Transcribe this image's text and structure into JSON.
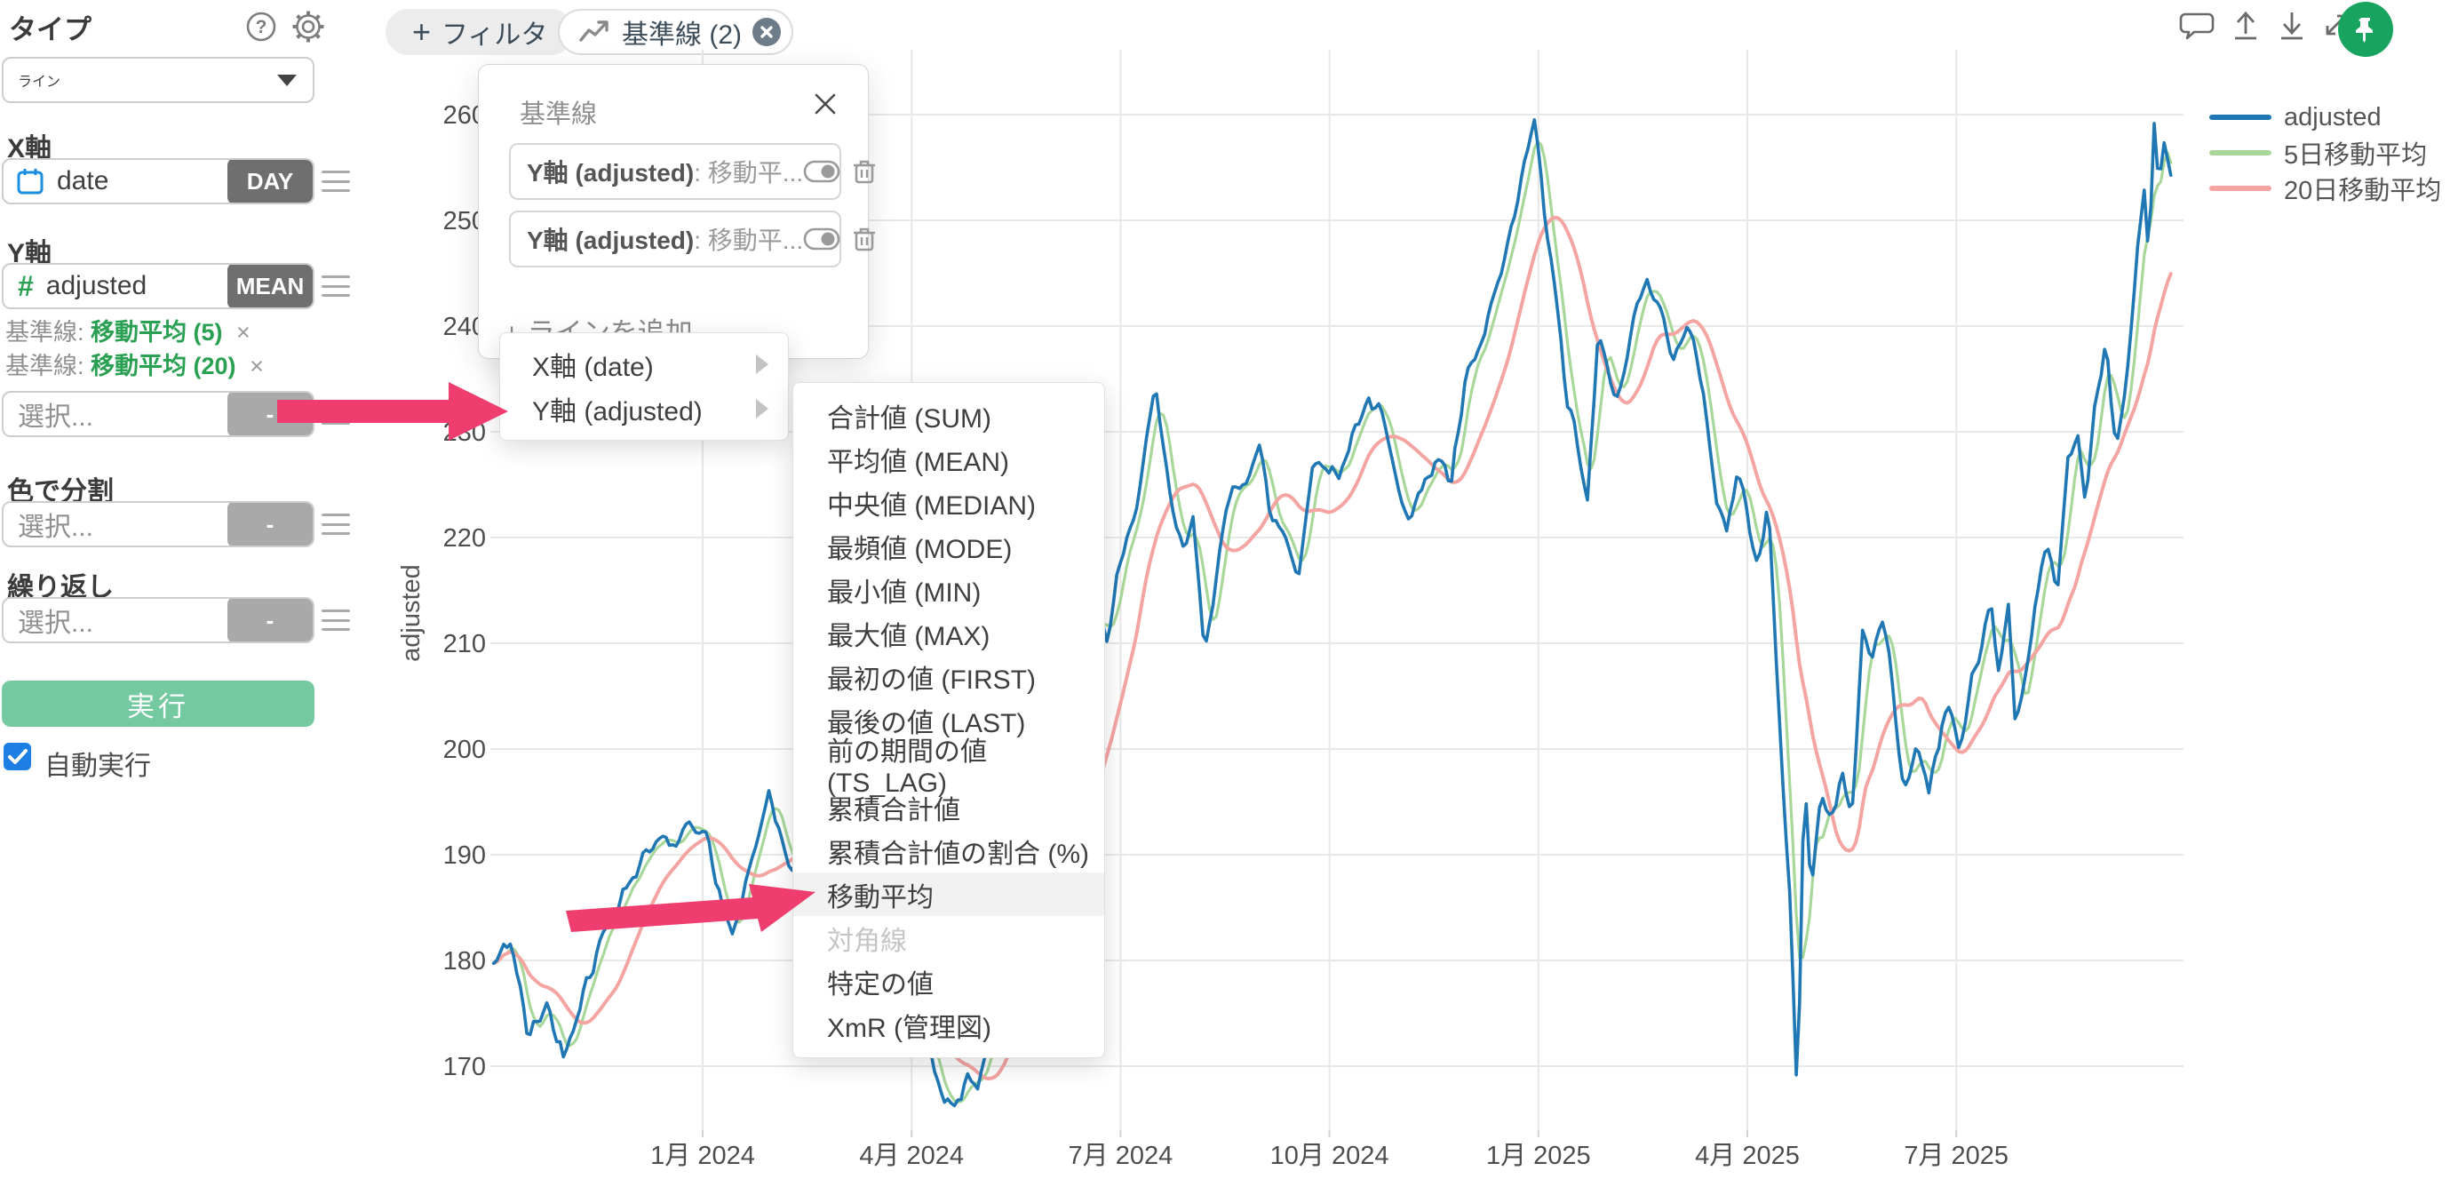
{
  "sidebar": {
    "type_label": "タイプ",
    "type_value": "ライン",
    "x_axis_label": "X軸",
    "x_field": "date",
    "x_agg": "DAY",
    "y_axis_label": "Y軸",
    "y_field": "adjusted",
    "y_agg": "MEAN",
    "ref_lines": [
      {
        "prefix": "基準線:",
        "label": "移動平均 (5)",
        "remove": "×"
      },
      {
        "prefix": "基準線:",
        "label": "移動平均 (20)",
        "remove": "×"
      }
    ],
    "y2_placeholder": "選択...",
    "y2_agg": "-",
    "color_label": "色で分割",
    "color_placeholder": "選択...",
    "color_agg": "-",
    "repeat_label": "繰り返し",
    "repeat_placeholder": "選択...",
    "repeat_agg": "-",
    "run_button": "実行",
    "auto_run_label": "自動実行",
    "auto_run_checked": true
  },
  "toolbar": {
    "filter_plus": "+",
    "filter_button": "フィルタ",
    "baseline_chip": "基準線 (2)"
  },
  "popup": {
    "title": "基準線",
    "rows": [
      {
        "bold": "Y軸 (adjusted)",
        "rest": " : 移動平..."
      },
      {
        "bold": "Y軸 (adjusted)",
        "rest": " : 移動平..."
      }
    ],
    "add_line": "+ ラインを追加"
  },
  "axis_menu": {
    "items": [
      {
        "label": "X軸 (date)"
      },
      {
        "label": "Y軸 (adjusted)"
      }
    ]
  },
  "agg_menu": {
    "items": [
      {
        "label": "合計値 (SUM)",
        "state": "normal"
      },
      {
        "label": "平均値 (MEAN)",
        "state": "normal"
      },
      {
        "label": "中央値 (MEDIAN)",
        "state": "normal"
      },
      {
        "label": "最頻値 (MODE)",
        "state": "normal"
      },
      {
        "label": "最小値 (MIN)",
        "state": "normal"
      },
      {
        "label": "最大値 (MAX)",
        "state": "normal"
      },
      {
        "label": "最初の値 (FIRST)",
        "state": "normal"
      },
      {
        "label": "最後の値 (LAST)",
        "state": "normal"
      },
      {
        "label": "前の期間の値 (TS_LAG)",
        "state": "normal"
      },
      {
        "label": "累積合計値",
        "state": "normal"
      },
      {
        "label": "累積合計値の割合 (%)",
        "state": "normal"
      },
      {
        "label": "移動平均",
        "state": "highlight"
      },
      {
        "label": "対角線",
        "state": "disabled"
      },
      {
        "label": "特定の値",
        "state": "normal"
      },
      {
        "label": "XmR (管理図)",
        "state": "normal"
      }
    ]
  },
  "legend": [
    {
      "label": "adjusted",
      "color": "#1f77b4"
    },
    {
      "label": "5日移動平均",
      "color": "#a8d79a"
    },
    {
      "label": "20日移動平均",
      "color": "#f4a5a2"
    }
  ],
  "colors": {
    "accent_green": "#74c9a1",
    "link_green": "#2aa053",
    "arrow_pink": "#ee3d6e",
    "checkbox_blue": "#1d7fe3",
    "pin_green": "#18a45f",
    "grid": "#e8e8e8"
  },
  "chart_data": {
    "type": "line",
    "xlabel": "date",
    "ylabel": "adjusted",
    "x_ticks": [
      "1月 2024",
      "4月 2024",
      "7月 2024",
      "10月 2024",
      "1月 2025",
      "4月 2025",
      "7月 2025"
    ],
    "y_ticks": [
      170,
      180,
      190,
      200,
      210,
      220,
      230,
      240,
      250,
      260
    ],
    "ylim": [
      163,
      266
    ],
    "x_range_months": [
      "2023-10",
      "2025-10"
    ],
    "grid": true,
    "legend_position": "top-right",
    "series": [
      {
        "name": "adjusted",
        "color": "#1f77b4",
        "anchors": [
          [
            0,
            179.5
          ],
          [
            0.25,
            182
          ],
          [
            0.5,
            172.5
          ],
          [
            0.75,
            176
          ],
          [
            1,
            171
          ],
          [
            1.25,
            176.5
          ],
          [
            1.55,
            182
          ],
          [
            1.85,
            186.5
          ],
          [
            2.1,
            189
          ],
          [
            2.4,
            192.5
          ],
          [
            2.55,
            190
          ],
          [
            2.85,
            193.5
          ],
          [
            3.05,
            192
          ],
          [
            3.25,
            185.5
          ],
          [
            3.45,
            182.5
          ],
          [
            3.7,
            189
          ],
          [
            3.95,
            196
          ],
          [
            4.1,
            192
          ],
          [
            4.25,
            187.5
          ],
          [
            4.4,
            190.5
          ],
          [
            4.6,
            182.5
          ],
          [
            4.8,
            184.5
          ],
          [
            4.95,
            179.5
          ],
          [
            5.15,
            181.5
          ],
          [
            5.35,
            172.8
          ],
          [
            5.55,
            176.5
          ],
          [
            5.85,
            171
          ],
          [
            6.1,
            175.5
          ],
          [
            6.35,
            169.5
          ],
          [
            6.6,
            165.3
          ],
          [
            6.8,
            169.5
          ],
          [
            6.95,
            168
          ],
          [
            7.15,
            173.5
          ],
          [
            7.45,
            183.5
          ],
          [
            7.65,
            186.5
          ],
          [
            7.9,
            190
          ],
          [
            8.1,
            193.5
          ],
          [
            8.25,
            194.5
          ],
          [
            8.35,
            186.5
          ],
          [
            8.5,
            207
          ],
          [
            8.65,
            213.5
          ],
          [
            8.8,
            210
          ],
          [
            8.95,
            216
          ],
          [
            9.15,
            220.5
          ],
          [
            9.35,
            228.5
          ],
          [
            9.5,
            233.5
          ],
          [
            9.7,
            224
          ],
          [
            9.9,
            218.5
          ],
          [
            10.05,
            221.5
          ],
          [
            10.2,
            209.5
          ],
          [
            10.4,
            217.5
          ],
          [
            10.6,
            224.5
          ],
          [
            10.8,
            226
          ],
          [
            11,
            228.5
          ],
          [
            11.15,
            222
          ],
          [
            11.35,
            220.5
          ],
          [
            11.55,
            216.5
          ],
          [
            11.75,
            226.5
          ],
          [
            11.95,
            227.5
          ],
          [
            12.15,
            225.5
          ],
          [
            12.35,
            230.5
          ],
          [
            12.55,
            233
          ],
          [
            12.75,
            231.5
          ],
          [
            12.95,
            225.5
          ],
          [
            13.15,
            222.5
          ],
          [
            13.35,
            224.5
          ],
          [
            13.55,
            228
          ],
          [
            13.75,
            225
          ],
          [
            13.95,
            234.5
          ],
          [
            14.15,
            237.5
          ],
          [
            14.35,
            242.5
          ],
          [
            14.55,
            246.5
          ],
          [
            14.75,
            253.5
          ],
          [
            14.95,
            259.5
          ],
          [
            15.1,
            250
          ],
          [
            15.25,
            242.5
          ],
          [
            15.4,
            233.5
          ],
          [
            15.55,
            229.5
          ],
          [
            15.7,
            222.5
          ],
          [
            15.85,
            238.5
          ],
          [
            16,
            236
          ],
          [
            16.15,
            232.5
          ],
          [
            16.35,
            240
          ],
          [
            16.55,
            245.5
          ],
          [
            16.75,
            241
          ],
          [
            16.95,
            237.5
          ],
          [
            17.15,
            239.5
          ],
          [
            17.35,
            235
          ],
          [
            17.55,
            224
          ],
          [
            17.7,
            220.5
          ],
          [
            17.85,
            226
          ],
          [
            18,
            222.5
          ],
          [
            18.15,
            218
          ],
          [
            18.3,
            223
          ],
          [
            18.42,
            207.5
          ],
          [
            18.52,
            196
          ],
          [
            18.62,
            184.5
          ],
          [
            18.72,
            166.5
          ],
          [
            18.82,
            198
          ],
          [
            18.92,
            187
          ],
          [
            19.05,
            195
          ],
          [
            19.2,
            193
          ],
          [
            19.35,
            198
          ],
          [
            19.5,
            193.5
          ],
          [
            19.65,
            211
          ],
          [
            19.8,
            208.5
          ],
          [
            19.95,
            212.5
          ],
          [
            20.1,
            205.5
          ],
          [
            20.25,
            195.5
          ],
          [
            20.45,
            200.5
          ],
          [
            20.6,
            196
          ],
          [
            20.75,
            201
          ],
          [
            20.9,
            204.5
          ],
          [
            21.05,
            199.5
          ],
          [
            21.2,
            205.5
          ],
          [
            21.35,
            209.5
          ],
          [
            21.5,
            214
          ],
          [
            21.6,
            207.5
          ],
          [
            21.75,
            213.5
          ],
          [
            21.85,
            202.5
          ],
          [
            22,
            207.5
          ],
          [
            22.15,
            213.5
          ],
          [
            22.3,
            220
          ],
          [
            22.45,
            214.5
          ],
          [
            22.6,
            227.5
          ],
          [
            22.75,
            230
          ],
          [
            22.85,
            223.5
          ],
          [
            23,
            232.5
          ],
          [
            23.15,
            238
          ],
          [
            23.3,
            228.5
          ],
          [
            23.45,
            235
          ],
          [
            23.6,
            247
          ],
          [
            23.7,
            252
          ],
          [
            23.76,
            246.5
          ],
          [
            23.85,
            260.5
          ],
          [
            23.9,
            253.5
          ],
          [
            23.98,
            257.5
          ],
          [
            24.08,
            254
          ]
        ]
      },
      {
        "name": "5日移動平均",
        "color": "#a8d79a",
        "derived": "moving_average_of_adjusted",
        "window_days": 5
      },
      {
        "name": "20日移動平均",
        "color": "#f4a5a2",
        "derived": "moving_average_of_adjusted",
        "window_days": 20
      }
    ]
  }
}
